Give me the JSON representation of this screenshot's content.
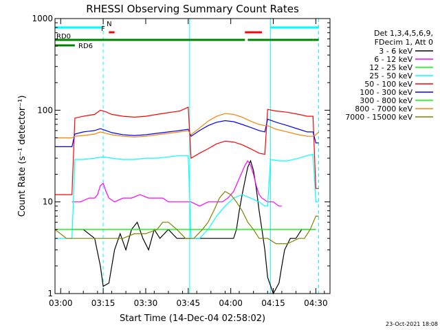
{
  "chart_data": {
    "type": "line",
    "title": "RHESSI Observing Summary Count Rates",
    "xlabel": "Start Time (14-Dec-04 02:58:02)",
    "ylabel": "Count Rate (s⁻¹ detector⁻¹)",
    "yscale": "log",
    "ylim": [
      1,
      1000
    ],
    "xlim_minutes": [
      0,
      97
    ],
    "x_ticks": [
      {
        "m": 2,
        "label": "03:00"
      },
      {
        "m": 17,
        "label": "03:15"
      },
      {
        "m": 32,
        "label": "03:30"
      },
      {
        "m": 47,
        "label": "03:45"
      },
      {
        "m": 62,
        "label": "04:00"
      },
      {
        "m": 77,
        "label": "04:15"
      },
      {
        "m": 92,
        "label": "04:30"
      }
    ],
    "y_ticks": [
      {
        "v": 1,
        "label": "1"
      },
      {
        "v": 10,
        "label": "10"
      },
      {
        "v": 100,
        "label": "100"
      },
      {
        "v": 1000,
        "label": "1000"
      }
    ],
    "legend": {
      "header": [
        "Det 1,3,4,5,6,9,",
        "FDecim 1, Att 0"
      ],
      "placement": "right"
    },
    "series": [
      {
        "name": "3 - 6 keV",
        "color": "#000000",
        "points": [
          [
            6,
            5
          ],
          [
            10,
            5
          ],
          [
            14,
            4
          ],
          [
            16,
            2
          ],
          [
            17,
            1.2
          ],
          [
            19,
            1.3
          ],
          [
            21,
            3
          ],
          [
            23,
            4.5
          ],
          [
            25,
            3
          ],
          [
            27,
            5
          ],
          [
            29,
            6
          ],
          [
            31,
            4
          ],
          [
            33,
            3
          ],
          [
            35,
            5
          ],
          [
            37,
            4
          ],
          [
            40,
            5
          ],
          [
            43,
            4
          ],
          [
            46,
            4
          ],
          [
            49,
            4
          ],
          [
            52,
            4
          ],
          [
            55,
            4
          ],
          [
            58,
            4
          ],
          [
            60,
            4
          ],
          [
            62,
            4
          ],
          [
            63,
            4
          ],
          [
            64,
            5
          ],
          [
            65,
            8
          ],
          [
            66,
            12
          ],
          [
            67,
            17
          ],
          [
            68,
            24
          ],
          [
            69,
            28
          ],
          [
            70,
            22
          ],
          [
            71,
            14
          ],
          [
            72,
            8
          ],
          [
            73,
            5
          ],
          [
            74,
            3
          ],
          [
            75,
            1.5
          ],
          [
            77,
            1
          ],
          [
            79,
            1.3
          ],
          [
            80,
            2
          ],
          [
            81,
            3
          ],
          [
            83,
            4
          ],
          [
            85,
            4
          ],
          [
            87,
            5
          ],
          [
            89,
            5
          ],
          [
            91,
            5
          ],
          [
            92,
            5
          ]
        ]
      },
      {
        "name": "6 - 12 keV",
        "color": "#ff00ff",
        "points": [
          [
            6,
            10
          ],
          [
            9,
            10
          ],
          [
            12,
            11
          ],
          [
            14,
            11
          ],
          [
            15,
            12
          ],
          [
            16,
            15
          ],
          [
            17,
            16
          ],
          [
            18,
            13
          ],
          [
            19,
            11
          ],
          [
            21,
            10
          ],
          [
            24,
            11
          ],
          [
            27,
            11
          ],
          [
            30,
            12
          ],
          [
            33,
            11
          ],
          [
            35,
            11
          ],
          [
            38,
            11
          ],
          [
            40,
            10
          ],
          [
            43,
            10
          ],
          [
            46,
            10
          ],
          [
            48,
            10
          ],
          [
            51,
            9
          ],
          [
            54,
            10
          ],
          [
            57,
            10
          ],
          [
            59,
            10
          ],
          [
            61,
            11
          ],
          [
            63,
            13
          ],
          [
            65,
            18
          ],
          [
            67,
            25
          ],
          [
            68,
            28
          ],
          [
            69,
            25
          ],
          [
            70,
            20
          ],
          [
            71,
            15
          ],
          [
            72,
            12
          ],
          [
            73,
            11
          ],
          [
            75,
            10
          ],
          [
            77,
            10
          ],
          [
            79,
            9
          ],
          [
            80,
            9
          ]
        ]
      },
      {
        "name": "12 - 25 keV",
        "color": "#00ff00",
        "points": [
          [
            0,
            5
          ],
          [
            4,
            5
          ],
          [
            8,
            5
          ],
          [
            12,
            5
          ],
          [
            16,
            5
          ],
          [
            20,
            5
          ],
          [
            24,
            5
          ],
          [
            28,
            5
          ],
          [
            32,
            5
          ],
          [
            36,
            5
          ],
          [
            40,
            5
          ],
          [
            44,
            5
          ],
          [
            48,
            5
          ],
          [
            52,
            5
          ],
          [
            56,
            5
          ],
          [
            60,
            5
          ],
          [
            64,
            5
          ],
          [
            68,
            5
          ],
          [
            72,
            5
          ],
          [
            76,
            5
          ],
          [
            80,
            5
          ],
          [
            84,
            5
          ],
          [
            88,
            5
          ],
          [
            92,
            5
          ]
        ]
      },
      {
        "name": "25 - 50 keV",
        "color": "#00ffff",
        "points": [
          [
            0,
            4
          ],
          [
            6,
            4
          ],
          [
            7,
            29
          ],
          [
            10,
            29
          ],
          [
            14,
            30
          ],
          [
            17,
            31
          ],
          [
            20,
            30
          ],
          [
            24,
            29
          ],
          [
            28,
            29
          ],
          [
            32,
            30
          ],
          [
            36,
            30
          ],
          [
            40,
            31
          ],
          [
            44,
            32
          ],
          [
            47,
            32
          ],
          [
            48,
            4
          ],
          [
            51,
            4
          ],
          [
            54,
            5
          ],
          [
            57,
            7
          ],
          [
            60,
            9
          ],
          [
            63,
            11
          ],
          [
            66,
            12
          ],
          [
            69,
            11
          ],
          [
            72,
            10
          ],
          [
            74,
            9
          ],
          [
            75,
            9
          ],
          [
            76,
            29
          ],
          [
            79,
            28
          ],
          [
            82,
            28
          ],
          [
            86,
            30
          ],
          [
            89,
            32
          ],
          [
            91,
            33
          ],
          [
            92,
            10
          ],
          [
            93,
            10
          ]
        ]
      },
      {
        "name": "50 - 100 keV",
        "color": "#ff0000",
        "points": [
          [
            0,
            12
          ],
          [
            6,
            12
          ],
          [
            7,
            82
          ],
          [
            10,
            86
          ],
          [
            14,
            90
          ],
          [
            16,
            100
          ],
          [
            18,
            96
          ],
          [
            20,
            90
          ],
          [
            24,
            86
          ],
          [
            28,
            84
          ],
          [
            32,
            86
          ],
          [
            36,
            90
          ],
          [
            40,
            94
          ],
          [
            44,
            98
          ],
          [
            47,
            108
          ],
          [
            48,
            30
          ],
          [
            51,
            34
          ],
          [
            54,
            38
          ],
          [
            57,
            43
          ],
          [
            60,
            46
          ],
          [
            63,
            45
          ],
          [
            66,
            42
          ],
          [
            69,
            38
          ],
          [
            72,
            34
          ],
          [
            74,
            33
          ],
          [
            75,
            102
          ],
          [
            78,
            98
          ],
          [
            82,
            95
          ],
          [
            86,
            90
          ],
          [
            89,
            86
          ],
          [
            91,
            86
          ],
          [
            92,
            14
          ],
          [
            93,
            14
          ]
        ]
      },
      {
        "name": "100 - 300 keV",
        "color": "#0000ff",
        "points": [
          [
            0,
            40
          ],
          [
            6,
            40
          ],
          [
            7,
            55
          ],
          [
            10,
            58
          ],
          [
            14,
            60
          ],
          [
            16,
            63
          ],
          [
            18,
            60
          ],
          [
            20,
            57
          ],
          [
            24,
            54
          ],
          [
            28,
            53
          ],
          [
            32,
            54
          ],
          [
            36,
            56
          ],
          [
            40,
            58
          ],
          [
            44,
            60
          ],
          [
            47,
            62
          ],
          [
            48,
            52
          ],
          [
            51,
            60
          ],
          [
            54,
            68
          ],
          [
            57,
            74
          ],
          [
            60,
            77
          ],
          [
            63,
            75
          ],
          [
            66,
            70
          ],
          [
            69,
            65
          ],
          [
            72,
            60
          ],
          [
            74,
            58
          ],
          [
            75,
            80
          ],
          [
            78,
            74
          ],
          [
            82,
            68
          ],
          [
            86,
            62
          ],
          [
            89,
            58
          ],
          [
            91,
            58
          ],
          [
            92,
            44
          ],
          [
            93,
            44
          ]
        ]
      },
      {
        "name": "300 - 800 keV",
        "color": "#00ff00",
        "points": [
          [
            0,
            5
          ],
          [
            4,
            5
          ],
          [
            8,
            5
          ],
          [
            12,
            5
          ],
          [
            16,
            5
          ],
          [
            20,
            5
          ],
          [
            24,
            5
          ],
          [
            28,
            5
          ],
          [
            32,
            5
          ],
          [
            36,
            5
          ],
          [
            40,
            5
          ],
          [
            44,
            5
          ],
          [
            48,
            5
          ],
          [
            52,
            5
          ],
          [
            56,
            5
          ],
          [
            60,
            5
          ],
          [
            64,
            5
          ],
          [
            68,
            5
          ],
          [
            72,
            5
          ],
          [
            76,
            5
          ],
          [
            80,
            5
          ],
          [
            84,
            5
          ],
          [
            88,
            5
          ],
          [
            92,
            5
          ]
        ]
      },
      {
        "name": "800 - 7000 keV",
        "color": "#ff8000",
        "points": [
          [
            0,
            50
          ],
          [
            6,
            50
          ],
          [
            7,
            52
          ],
          [
            10,
            53
          ],
          [
            14,
            55
          ],
          [
            16,
            58
          ],
          [
            18,
            56
          ],
          [
            20,
            54
          ],
          [
            24,
            52
          ],
          [
            28,
            51
          ],
          [
            32,
            52
          ],
          [
            36,
            54
          ],
          [
            40,
            56
          ],
          [
            44,
            58
          ],
          [
            47,
            60
          ],
          [
            48,
            54
          ],
          [
            51,
            64
          ],
          [
            54,
            76
          ],
          [
            57,
            86
          ],
          [
            60,
            92
          ],
          [
            63,
            90
          ],
          [
            66,
            84
          ],
          [
            69,
            76
          ],
          [
            72,
            70
          ],
          [
            74,
            68
          ],
          [
            75,
            68
          ],
          [
            78,
            62
          ],
          [
            82,
            58
          ],
          [
            86,
            54
          ],
          [
            89,
            52
          ],
          [
            91,
            52
          ],
          [
            92,
            54
          ],
          [
            93,
            58
          ]
        ]
      },
      {
        "name": "7000 - 15000 keV",
        "color": "#808000",
        "points": [
          [
            0,
            5
          ],
          [
            4,
            4
          ],
          [
            8,
            4
          ],
          [
            12,
            4
          ],
          [
            16,
            4
          ],
          [
            20,
            4
          ],
          [
            24,
            4
          ],
          [
            28,
            4.5
          ],
          [
            32,
            4.5
          ],
          [
            36,
            5
          ],
          [
            38,
            6
          ],
          [
            40,
            6
          ],
          [
            43,
            5
          ],
          [
            46,
            4
          ],
          [
            49,
            4
          ],
          [
            52,
            5
          ],
          [
            54,
            6
          ],
          [
            56,
            8
          ],
          [
            58,
            11
          ],
          [
            60,
            13
          ],
          [
            62,
            12
          ],
          [
            64,
            10
          ],
          [
            66,
            8
          ],
          [
            68,
            6
          ],
          [
            70,
            5
          ],
          [
            72,
            4
          ],
          [
            75,
            4
          ],
          [
            78,
            3.5
          ],
          [
            82,
            3.5
          ],
          [
            86,
            4
          ],
          [
            88,
            4
          ],
          [
            90,
            5
          ],
          [
            92,
            7
          ],
          [
            93,
            7
          ]
        ]
      }
    ],
    "flags": [
      {
        "label": "N",
        "color": "#00ffff",
        "segments": [
          [
            0,
            17
          ],
          [
            76,
            93
          ]
        ]
      },
      {
        "label": "F",
        "color": "#ff0000",
        "segments": [
          [
            19,
            21
          ],
          [
            67,
            73
          ]
        ]
      },
      {
        "label": "RD0",
        "color": "#008000",
        "segments": [
          [
            0,
            48
          ],
          [
            48,
            67
          ],
          [
            68,
            91
          ],
          [
            91,
            93
          ]
        ]
      },
      {
        "label": "RD6",
        "color": "#008000",
        "segments": [
          [
            0,
            7
          ]
        ]
      }
    ],
    "vlines_solid": [
      0,
      47.5,
      76
    ],
    "vlines_dashed": [
      17,
      93
    ]
  },
  "footer": {
    "date": "23-Oct-2021 18:08"
  }
}
